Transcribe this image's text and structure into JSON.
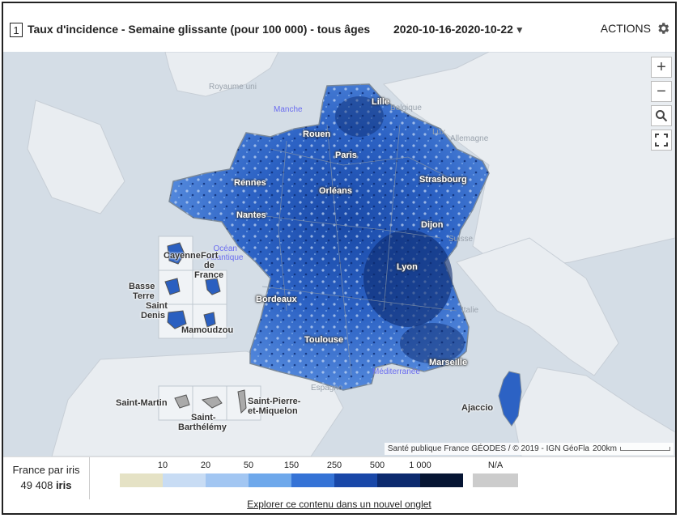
{
  "header": {
    "index": "1",
    "title": "Taux d'incidence - Semaine glissante (pour 100 000) - tous âges",
    "date_range": "2020-10-16-2020-10-22",
    "actions_label": "ACTIONS"
  },
  "map": {
    "controls": [
      "zoom-in",
      "zoom-out",
      "search",
      "fullscreen"
    ],
    "sea_labels": {
      "manche": "Manche",
      "ocean": "Océan\nAtlantique",
      "mediterranee": "Méditerranée"
    },
    "background_labels": {
      "uk": "Royaume uni",
      "belgique": "Belgique",
      "lux": "Lux",
      "allemagne": "Allemagne",
      "suisse": "Suisse",
      "italie": "Italie",
      "espagne": "Espagne"
    },
    "cities": {
      "lille": "Lille",
      "rouen": "Rouen",
      "paris": "Paris",
      "strasbourg": "Strasbourg",
      "rennes": "Rennes",
      "orleans": "Orléans",
      "nantes": "Nantes",
      "dijon": "Dijon",
      "lyon": "Lyon",
      "bordeaux": "Bordeaux",
      "toulouse": "Toulouse",
      "marseille": "Marseille",
      "ajaccio": "Ajaccio"
    },
    "overseas": {
      "cayenne": "Cayenne",
      "fort_de_france_1": "Fort",
      "fort_de_france_2": "de",
      "fort_de_france_3": "France",
      "basse_terre_1": "Basse",
      "basse_terre_2": "Terre",
      "saint_denis_1": "Saint",
      "saint_denis_2": "Denis",
      "mamoudzou": "Mamoudzou",
      "saint_martin": "Saint-Martin",
      "saint_barthelemy_1": "Saint-",
      "saint_barthelemy_2": "Barthélémy",
      "spm_1": "Saint-Pierre-",
      "spm_2": "et-Miquelon"
    },
    "attribution": "Santé publique France GÉODES / © 2019 - IGN GéoFla",
    "scale_label": "200km"
  },
  "legend": {
    "geo_level_line1": "France par iris",
    "geo_count": "49 408",
    "geo_unit": "iris",
    "ticks": [
      "10",
      "20",
      "50",
      "150",
      "250",
      "500",
      "1 000"
    ],
    "na_label": "N/A",
    "colors": [
      "#e5e2c5",
      "#c8dcf4",
      "#a2c6f2",
      "#6ea8eb",
      "#3573d6",
      "#1947a8",
      "#0c2a6e",
      "#061533"
    ],
    "na_color": "#cccccc"
  },
  "footer": {
    "link_label": "Explorer ce contenu dans un nouvel onglet"
  }
}
